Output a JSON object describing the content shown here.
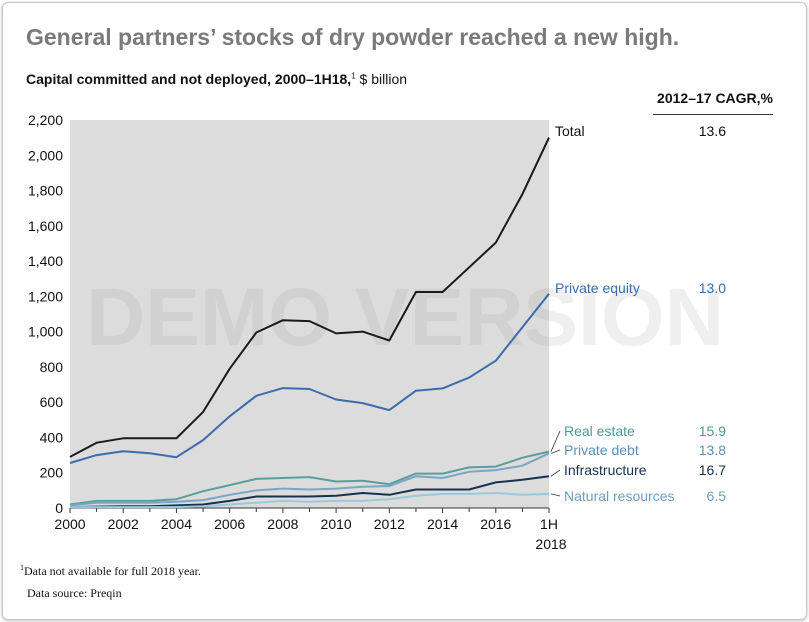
{
  "title": "General partners’ stocks of dry powder reached a new high.",
  "subtitle_bold": "Capital committed and not deployed, 2000–1H18,",
  "subtitle_sup": "1",
  "subtitle_unit": " $ billion",
  "cagr_header": "2012–17 CAGR,%",
  "watermark": "DEMO VERSION",
  "footnote_sup": "1",
  "footnote": "Data not available for full 2018 year.",
  "source": "Data source: Preqin",
  "chart_data": {
    "type": "line",
    "x": [
      "2000",
      "2001",
      "2002",
      "2003",
      "2004",
      "2005",
      "2006",
      "2007",
      "2008",
      "2009",
      "2010",
      "2011",
      "2012",
      "2013",
      "2014",
      "2015",
      "2016",
      "2017",
      "1H 2018"
    ],
    "x_tick_labels": [
      "2000",
      "2002",
      "2004",
      "2006",
      "2008",
      "2010",
      "2012",
      "2014",
      "2016",
      "1H"
    ],
    "x_tick_sublabel": "2018",
    "y_ticks": [
      "0",
      "200",
      "400",
      "600",
      "800",
      "1,000",
      "1,200",
      "1,400",
      "1,600",
      "1,800",
      "2,000",
      "2,200"
    ],
    "ylim": [
      0,
      2200
    ],
    "grid": false,
    "series": [
      {
        "name": "Total",
        "cagr": "13.6",
        "color": "#1a1a1a",
        "label_color": "#111111",
        "cagr_color": "#111111",
        "values": [
          290,
          370,
          395,
          395,
          395,
          545,
          790,
          995,
          1065,
          1060,
          990,
          1000,
          950,
          1225,
          1225,
          1365,
          1505,
          1780,
          2100
        ]
      },
      {
        "name": "Private equity",
        "cagr": "13.0",
        "color": "#3a6cae",
        "label_color": "#3a6cae",
        "cagr_color": "#3a6cae",
        "values": [
          255,
          300,
          322,
          310,
          288,
          385,
          520,
          636,
          680,
          675,
          615,
          595,
          555,
          665,
          678,
          740,
          835,
          1025,
          1215
        ]
      },
      {
        "name": "Real estate",
        "cagr": "15.9",
        "color": "#5a9e9e",
        "label_color": "#4f9898",
        "cagr_color": "#4f9898",
        "values": [
          20,
          40,
          40,
          40,
          50,
          95,
          130,
          165,
          170,
          175,
          150,
          155,
          135,
          195,
          195,
          230,
          235,
          285,
          320
        ]
      },
      {
        "name": "Private debt",
        "cagr": "13.8",
        "color": "#7aa6c6",
        "label_color": "#5b8fb8",
        "cagr_color": "#5b8fb8",
        "values": [
          15,
          30,
          30,
          30,
          35,
          45,
          75,
          100,
          110,
          105,
          110,
          120,
          125,
          180,
          170,
          205,
          215,
          240,
          310
        ]
      },
      {
        "name": "Infrastructure",
        "cagr": "16.7",
        "color": "#16324f",
        "label_color": "#16324f",
        "cagr_color": "#16324f",
        "values": [
          5,
          8,
          10,
          10,
          15,
          20,
          40,
          65,
          65,
          65,
          70,
          85,
          75,
          105,
          105,
          105,
          145,
          160,
          180
        ]
      },
      {
        "name": "Natural resources",
        "cagr": "6.5",
        "color": "#9cc8dc",
        "label_color": "#6a9fc2",
        "cagr_color": "#6a9fc2",
        "values": [
          5,
          5,
          5,
          5,
          5,
          10,
          20,
          30,
          40,
          35,
          40,
          40,
          50,
          70,
          80,
          80,
          85,
          75,
          80
        ]
      }
    ]
  }
}
